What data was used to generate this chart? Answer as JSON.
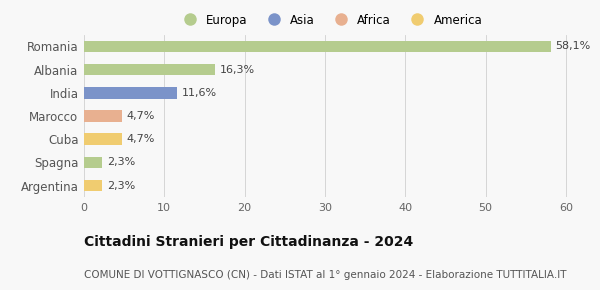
{
  "categories": [
    "Romania",
    "Albania",
    "India",
    "Marocco",
    "Cuba",
    "Spagna",
    "Argentina"
  ],
  "values": [
    58.1,
    16.3,
    11.6,
    4.7,
    4.7,
    2.3,
    2.3
  ],
  "labels": [
    "58,1%",
    "16,3%",
    "11,6%",
    "4,7%",
    "4,7%",
    "2,3%",
    "2,3%"
  ],
  "colors": [
    "#b5cc8e",
    "#b5cc8e",
    "#7b93c9",
    "#e8b090",
    "#f0cc70",
    "#b5cc8e",
    "#f0cc70"
  ],
  "legend_labels": [
    "Europa",
    "Asia",
    "Africa",
    "America"
  ],
  "legend_colors": [
    "#b5cc8e",
    "#7b93c9",
    "#e8b090",
    "#f0cc70"
  ],
  "xlim": [
    0,
    62
  ],
  "xticks": [
    0,
    10,
    20,
    30,
    40,
    50,
    60
  ],
  "title": "Cittadini Stranieri per Cittadinanza - 2024",
  "subtitle": "COMUNE DI VOTTIGNASCO (CN) - Dati ISTAT al 1° gennaio 2024 - Elaborazione TUTTITALIA.IT",
  "bg_color": "#f8f8f8",
  "bar_height": 0.5,
  "title_fontsize": 10,
  "subtitle_fontsize": 7.5,
  "label_fontsize": 8,
  "ytick_fontsize": 8.5,
  "xtick_fontsize": 8,
  "legend_fontsize": 8.5
}
